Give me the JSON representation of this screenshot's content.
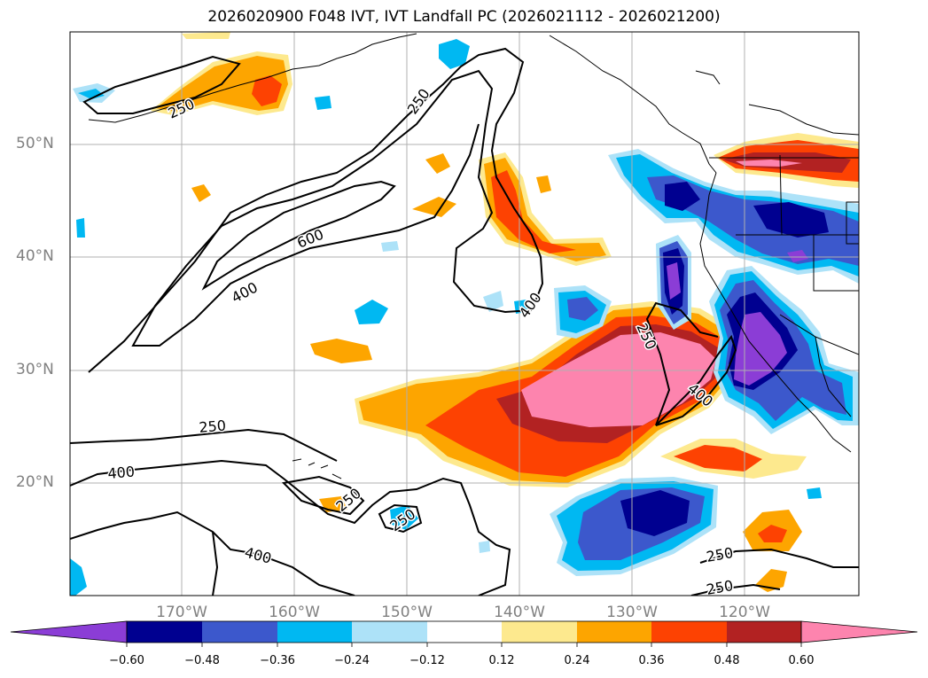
{
  "title": "2026020900 F048 IVT, IVT Landfall PC (2026021112 - 2026021200)",
  "lat_labels": [
    "50°N",
    "40°N",
    "30°N",
    "20°N"
  ],
  "lon_labels": [
    "170°W",
    "160°W",
    "150°W",
    "140°W",
    "130°W",
    "120°W"
  ],
  "contour_labels": {
    "north_250": "250",
    "aleutian_250": "250",
    "jet_600": "600",
    "jet_400": "400",
    "east_400": "400",
    "coast_250": "250",
    "coast_400": "400",
    "south_250": "250",
    "south_400": "400",
    "hawaii_250a": "250",
    "hawaii_250b": "250",
    "bottom_400": "400",
    "se_250a": "250",
    "se_250b": "250"
  },
  "colorbar": {
    "ticks": [
      "−0.60",
      "−0.48",
      "−0.36",
      "−0.24",
      "−0.12",
      "0.12",
      "0.24",
      "0.36",
      "0.48",
      "0.60"
    ],
    "colors": [
      "#8b3dd6",
      "#000090",
      "#3c58cc",
      "#00b8f2",
      "#ade2f8",
      "#ffffff",
      "#fde98e",
      "#fda500",
      "#fd4202",
      "#b22222",
      "#fd84ae"
    ]
  },
  "palette": {
    "purple": "#8b3dd6",
    "navy": "#000090",
    "royal": "#3c58cc",
    "sky": "#00b8f2",
    "pale_blue": "#ade2f8",
    "pale_yellow": "#fde98e",
    "orange": "#fda500",
    "red_orange": "#fd4202",
    "dark_red": "#b22222",
    "pink": "#fd84ae"
  }
}
